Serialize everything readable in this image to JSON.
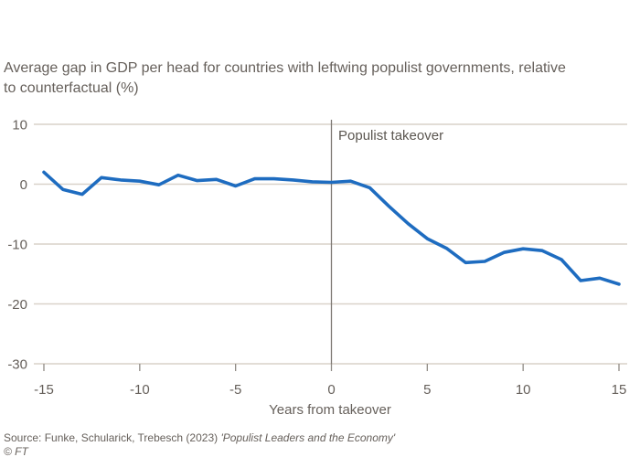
{
  "subtitle_lines": [
    "Average gap in GDP per head for countries with leftwing populist governments, relative",
    "to counterfactual (%)"
  ],
  "annotation_label": "Populist takeover",
  "source_prefix": "Source: Funke, Schularick, Trebesch (2023) ",
  "source_work": "'Populist Leaders and the Economy'",
  "footer_credit": "© FT",
  "chart_data": {
    "type": "line",
    "title": "",
    "subtitle": "Average gap in GDP per head for countries with leftwing populist governments, relative to counterfactual (%)",
    "xlabel": "Years from takeover",
    "ylabel": "",
    "x": [
      -15,
      -14,
      -13,
      -12,
      -11,
      -10,
      -9,
      -8,
      -7,
      -6,
      -5,
      -4,
      -3,
      -2,
      -1,
      0,
      1,
      2,
      3,
      4,
      5,
      6,
      7,
      8,
      9,
      10,
      11,
      12,
      13,
      14,
      15
    ],
    "series": [
      {
        "name": "Average GDP-per-head gap vs counterfactual (%)",
        "color": "#1e6cc0",
        "values": [
          2.0,
          -0.9,
          -1.7,
          1.1,
          0.7,
          0.5,
          -0.1,
          1.5,
          0.6,
          0.8,
          -0.3,
          0.9,
          0.9,
          0.7,
          0.4,
          0.3,
          0.5,
          -0.6,
          -3.7,
          -6.6,
          -9.1,
          -10.7,
          -13.1,
          -12.9,
          -11.4,
          -10.8,
          -11.1,
          -12.6,
          -16.1,
          -15.7,
          -16.7
        ]
      }
    ],
    "xlim": [
      -15,
      15
    ],
    "ylim": [
      -30,
      10
    ],
    "xticks": [
      -15,
      -10,
      -5,
      0,
      5,
      10,
      15
    ],
    "yticks": [
      10,
      0,
      -10,
      -20,
      -30
    ],
    "grid": "horizontal",
    "legend": "none",
    "reference_line_x": 0,
    "annotation": {
      "text": "Populist takeover",
      "x": 0,
      "y": 10
    }
  },
  "colors": {
    "line": "#1e6cc0",
    "gridline": "#d9d2c9",
    "axis_line": "#d9d2c9",
    "tick_mark": "#8f8a85",
    "tick_label": "#66605b",
    "reference_line": "#7d7873",
    "text": "#66605b",
    "background": "#ffffff"
  }
}
